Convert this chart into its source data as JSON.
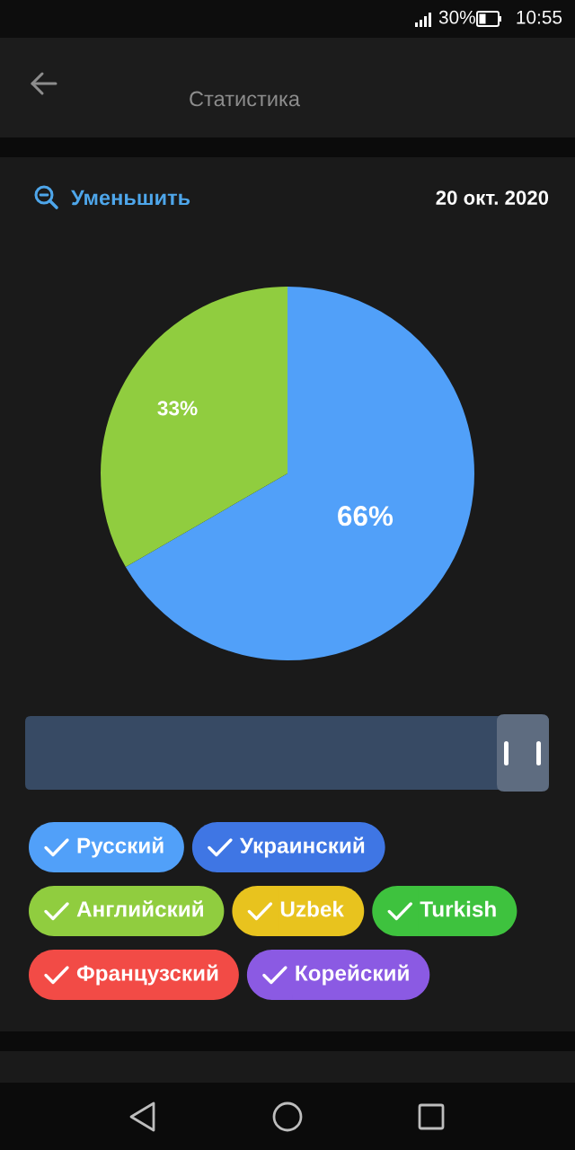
{
  "chart_data": {
    "type": "pie",
    "title": "Статистика",
    "subtitle": "20 окт. 2020",
    "categories": [
      "Русский",
      "Украинский",
      "Английский",
      "Uzbek",
      "Turkish",
      "Французский",
      "Корейский"
    ],
    "values": [
      66,
      0,
      33,
      0,
      0,
      0,
      0
    ],
    "colors": [
      "#51a0f9",
      "#3f76e4",
      "#90cd3f",
      "#e8c31e",
      "#3ec23e",
      "#f24b46",
      "#8b5ae3"
    ],
    "value_labels": [
      "66%",
      null,
      "33%",
      null,
      null,
      null,
      null
    ],
    "legend": "bottom",
    "annotations": [
      "30%",
      "10:55",
      "Уменьшить"
    ]
  }
}
